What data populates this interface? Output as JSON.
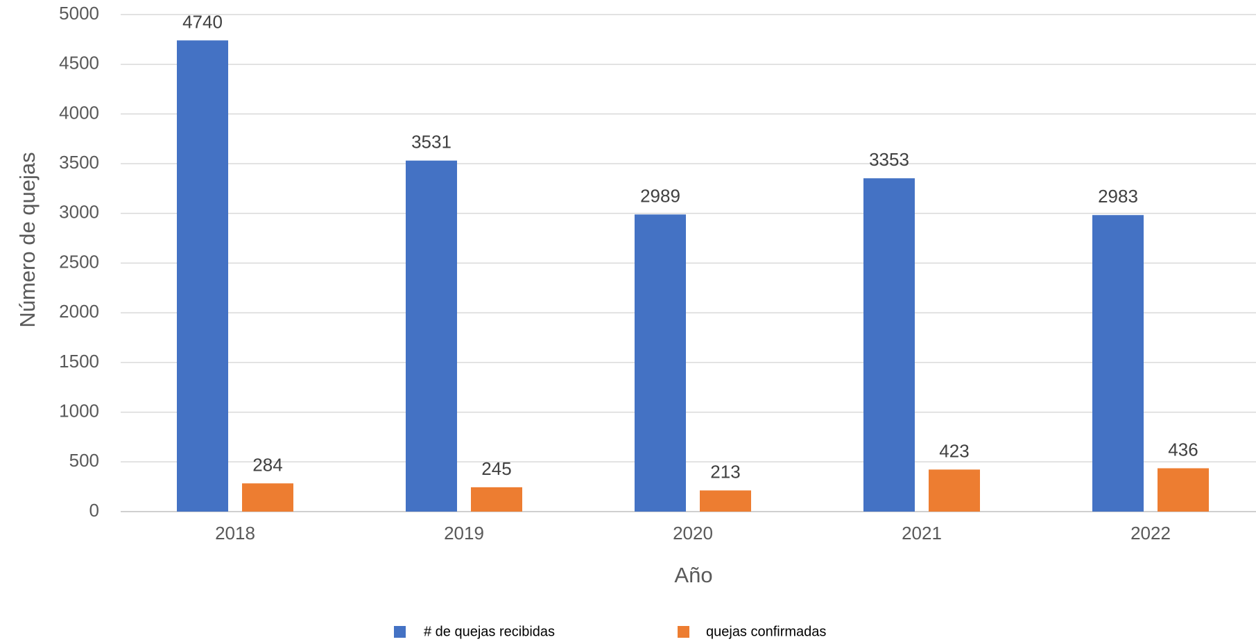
{
  "chart_data": {
    "type": "bar",
    "title": "",
    "xlabel": "Año",
    "ylabel": "Número de quejas",
    "categories": [
      "2018",
      "2019",
      "2020",
      "2021",
      "2022"
    ],
    "series": [
      {
        "name": "# de quejas recibidas",
        "color": "#4472C4",
        "values": [
          4740,
          3531,
          2989,
          3353,
          2983
        ]
      },
      {
        "name": "quejas confirmadas",
        "color": "#ED7D31",
        "values": [
          284,
          245,
          213,
          423,
          436
        ]
      }
    ],
    "ylim": [
      0,
      5000
    ],
    "yticks": [
      0,
      500,
      1000,
      1500,
      2000,
      2500,
      3000,
      3500,
      4000,
      4500,
      5000
    ],
    "grid": true,
    "legend_position": "bottom",
    "data_labels": true
  }
}
